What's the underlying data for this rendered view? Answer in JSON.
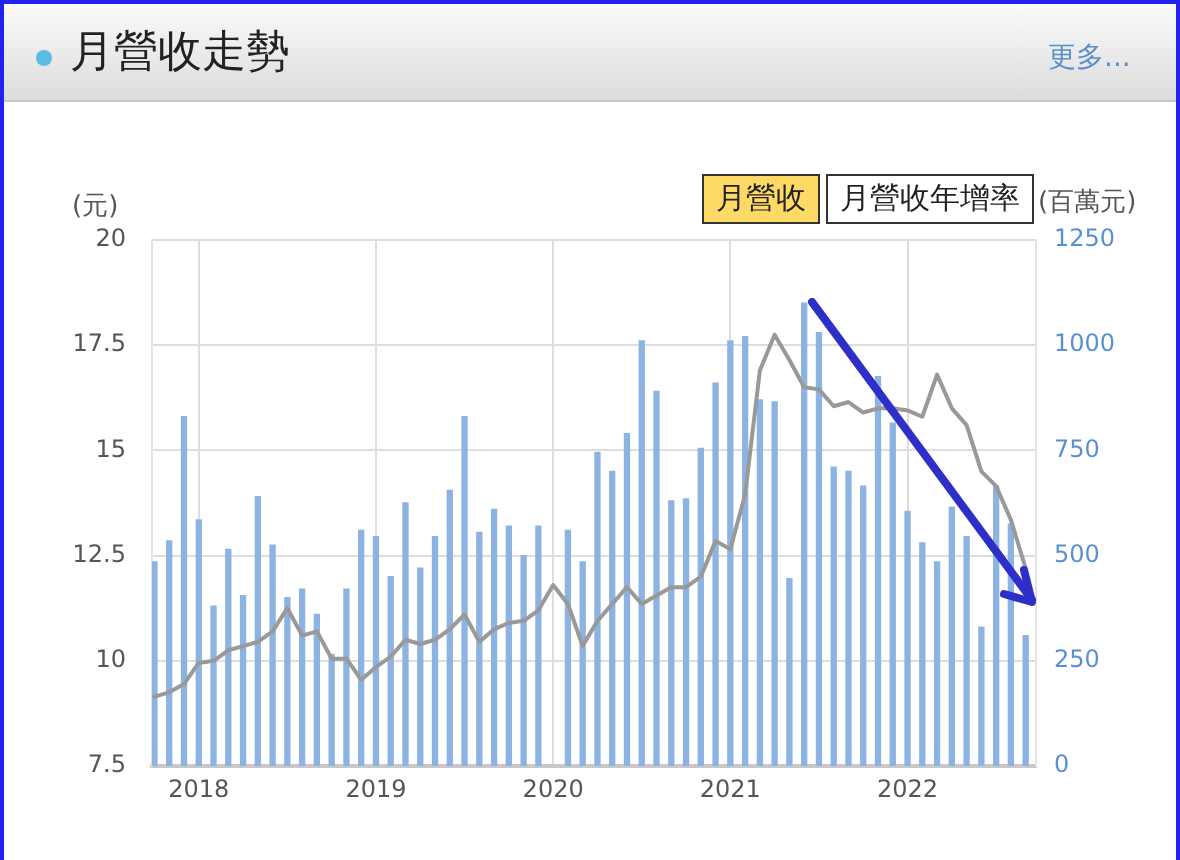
{
  "chart_data": {
    "type": "bar",
    "title": "月營收走勢",
    "ylabel": "(元)",
    "y2label": "(百萬元)",
    "annotations": [
      "月營收",
      "月營收年增率",
      "更多..."
    ],
    "x": [
      "2017-10",
      "2017-11",
      "2017-12",
      "2018-01",
      "2018-02",
      "2018-03",
      "2018-04",
      "2018-05",
      "2018-06",
      "2018-07",
      "2018-08",
      "2018-09",
      "2018-10",
      "2018-11",
      "2018-12",
      "2019-01",
      "2019-02",
      "2019-03",
      "2019-04",
      "2019-05",
      "2019-06",
      "2019-07",
      "2019-08",
      "2019-09",
      "2019-10",
      "2019-11",
      "2019-12",
      "2020-01",
      "2020-02",
      "2020-03",
      "2020-04",
      "2020-05",
      "2020-06",
      "2020-07",
      "2020-08",
      "2020-09",
      "2020-10",
      "2020-11",
      "2020-12",
      "2021-01",
      "2021-02",
      "2021-03",
      "2021-04",
      "2021-05",
      "2021-06",
      "2021-07",
      "2021-08",
      "2021-09",
      "2021-10",
      "2021-11",
      "2021-12",
      "2022-01",
      "2022-02",
      "2022-03",
      "2022-04",
      "2022-05",
      "2022-06",
      "2022-07",
      "2022-08",
      "2022-09"
    ],
    "series": [
      {
        "axis": "y2",
        "color": "#8db3e2",
        "values": [
          485,
          535,
          830,
          585,
          380,
          515,
          405,
          640,
          525,
          400,
          420,
          360,
          265,
          420,
          560,
          545,
          450,
          625,
          470,
          545,
          655,
          830,
          555,
          610,
          570,
          500,
          570,
          null,
          560,
          485,
          745,
          700,
          790,
          1010,
          890,
          630,
          635,
          755,
          910,
          1010,
          1020,
          870,
          865,
          445,
          1100,
          1030,
          710,
          700,
          665,
          925,
          815,
          605,
          530,
          485,
          615,
          545,
          330,
          665,
          575,
          310
        ]
      },
      {
        "type": "line",
        "color": "#999999",
        "values": [
          9.15,
          9.25,
          9.45,
          9.95,
          10,
          10.25,
          10.35,
          10.45,
          10.7,
          11.25,
          10.6,
          10.7,
          10.05,
          10.05,
          9.55,
          9.85,
          10.1,
          10.5,
          10.4,
          10.5,
          10.75,
          11.1,
          10.45,
          10.75,
          10.9,
          10.95,
          11.2,
          11.8,
          11.35,
          10.35,
          10.95,
          11.35,
          11.75,
          11.35,
          11.55,
          11.75,
          11.75,
          12,
          12.85,
          12.65,
          13.95,
          16.9,
          17.75,
          17.15,
          16.5,
          16.45,
          16.05,
          16.15,
          15.9,
          16,
          16,
          15.95,
          15.8,
          16.8,
          16,
          15.6,
          14.5,
          14.15,
          13.35,
          12.2
        ]
      }
    ],
    "xlim": [
      "2017-09-26",
      "2022-09-22"
    ],
    "xticks": [
      "2018",
      "2019",
      "2020",
      "2021",
      "2022"
    ],
    "ylim": [
      7.5,
      20
    ],
    "yticks": [
      7.5,
      10,
      12.5,
      15,
      17.5,
      20
    ],
    "y2lim": [
      0,
      1250
    ],
    "y2ticks": [
      0,
      250,
      500,
      750,
      1000,
      1250
    ],
    "grid": true
  }
}
